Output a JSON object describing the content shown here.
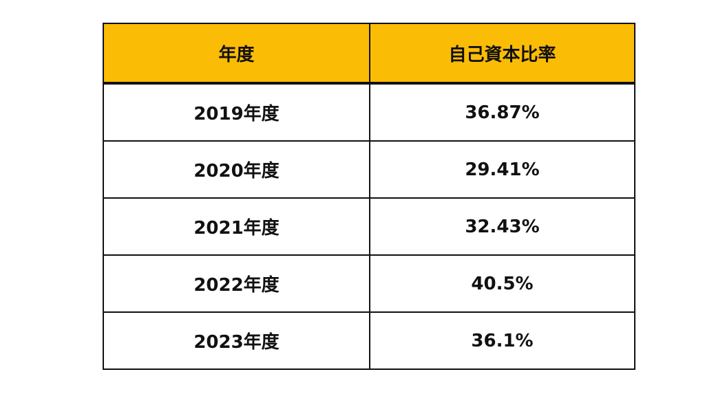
{
  "table": {
    "header": [
      "年度",
      "自己資本比率"
    ],
    "rows": [
      [
        "2019年度",
        "36.87%"
      ],
      [
        "2020年度",
        "29.41%"
      ],
      [
        "2021年度",
        "32.43%"
      ],
      [
        "2022年度",
        "40.5%"
      ],
      [
        "2023年度",
        "36.1%"
      ]
    ]
  }
}
